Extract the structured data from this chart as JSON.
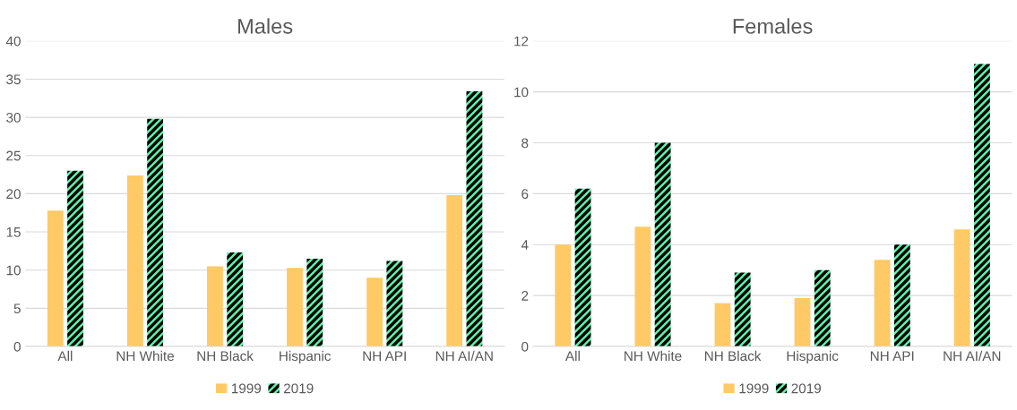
{
  "chart_data": [
    {
      "type": "bar",
      "title": "Males",
      "categories": [
        "All",
        "NH White",
        "NH Black",
        "Hispanic",
        "NH API",
        "NH AI/AN"
      ],
      "series": [
        {
          "name": "1999",
          "color": "#ffc966",
          "values": [
            17.8,
            22.4,
            10.5,
            10.3,
            9.0,
            19.8
          ]
        },
        {
          "name": "2019",
          "color": "#5cf5a8",
          "values": [
            23.0,
            29.8,
            12.3,
            11.5,
            11.2,
            33.4
          ]
        }
      ],
      "ylim": [
        0,
        40
      ],
      "yticks": [
        0,
        5,
        10,
        15,
        20,
        25,
        30,
        35,
        40
      ],
      "grid": "y",
      "legend": "bottom"
    },
    {
      "type": "bar",
      "title": "Females",
      "categories": [
        "All",
        "NH White",
        "NH Black",
        "Hispanic",
        "NH API",
        "NH AI/AN"
      ],
      "series": [
        {
          "name": "1999",
          "color": "#ffc966",
          "values": [
            4.0,
            4.7,
            1.7,
            1.9,
            3.4,
            4.6
          ]
        },
        {
          "name": "2019",
          "color": "#5cf5a8",
          "values": [
            6.2,
            8.0,
            2.9,
            3.0,
            4.0,
            11.1
          ]
        }
      ],
      "ylim": [
        0,
        12
      ],
      "yticks": [
        0,
        2,
        4,
        6,
        8,
        10,
        12
      ],
      "grid": "y",
      "legend": "bottom"
    }
  ]
}
